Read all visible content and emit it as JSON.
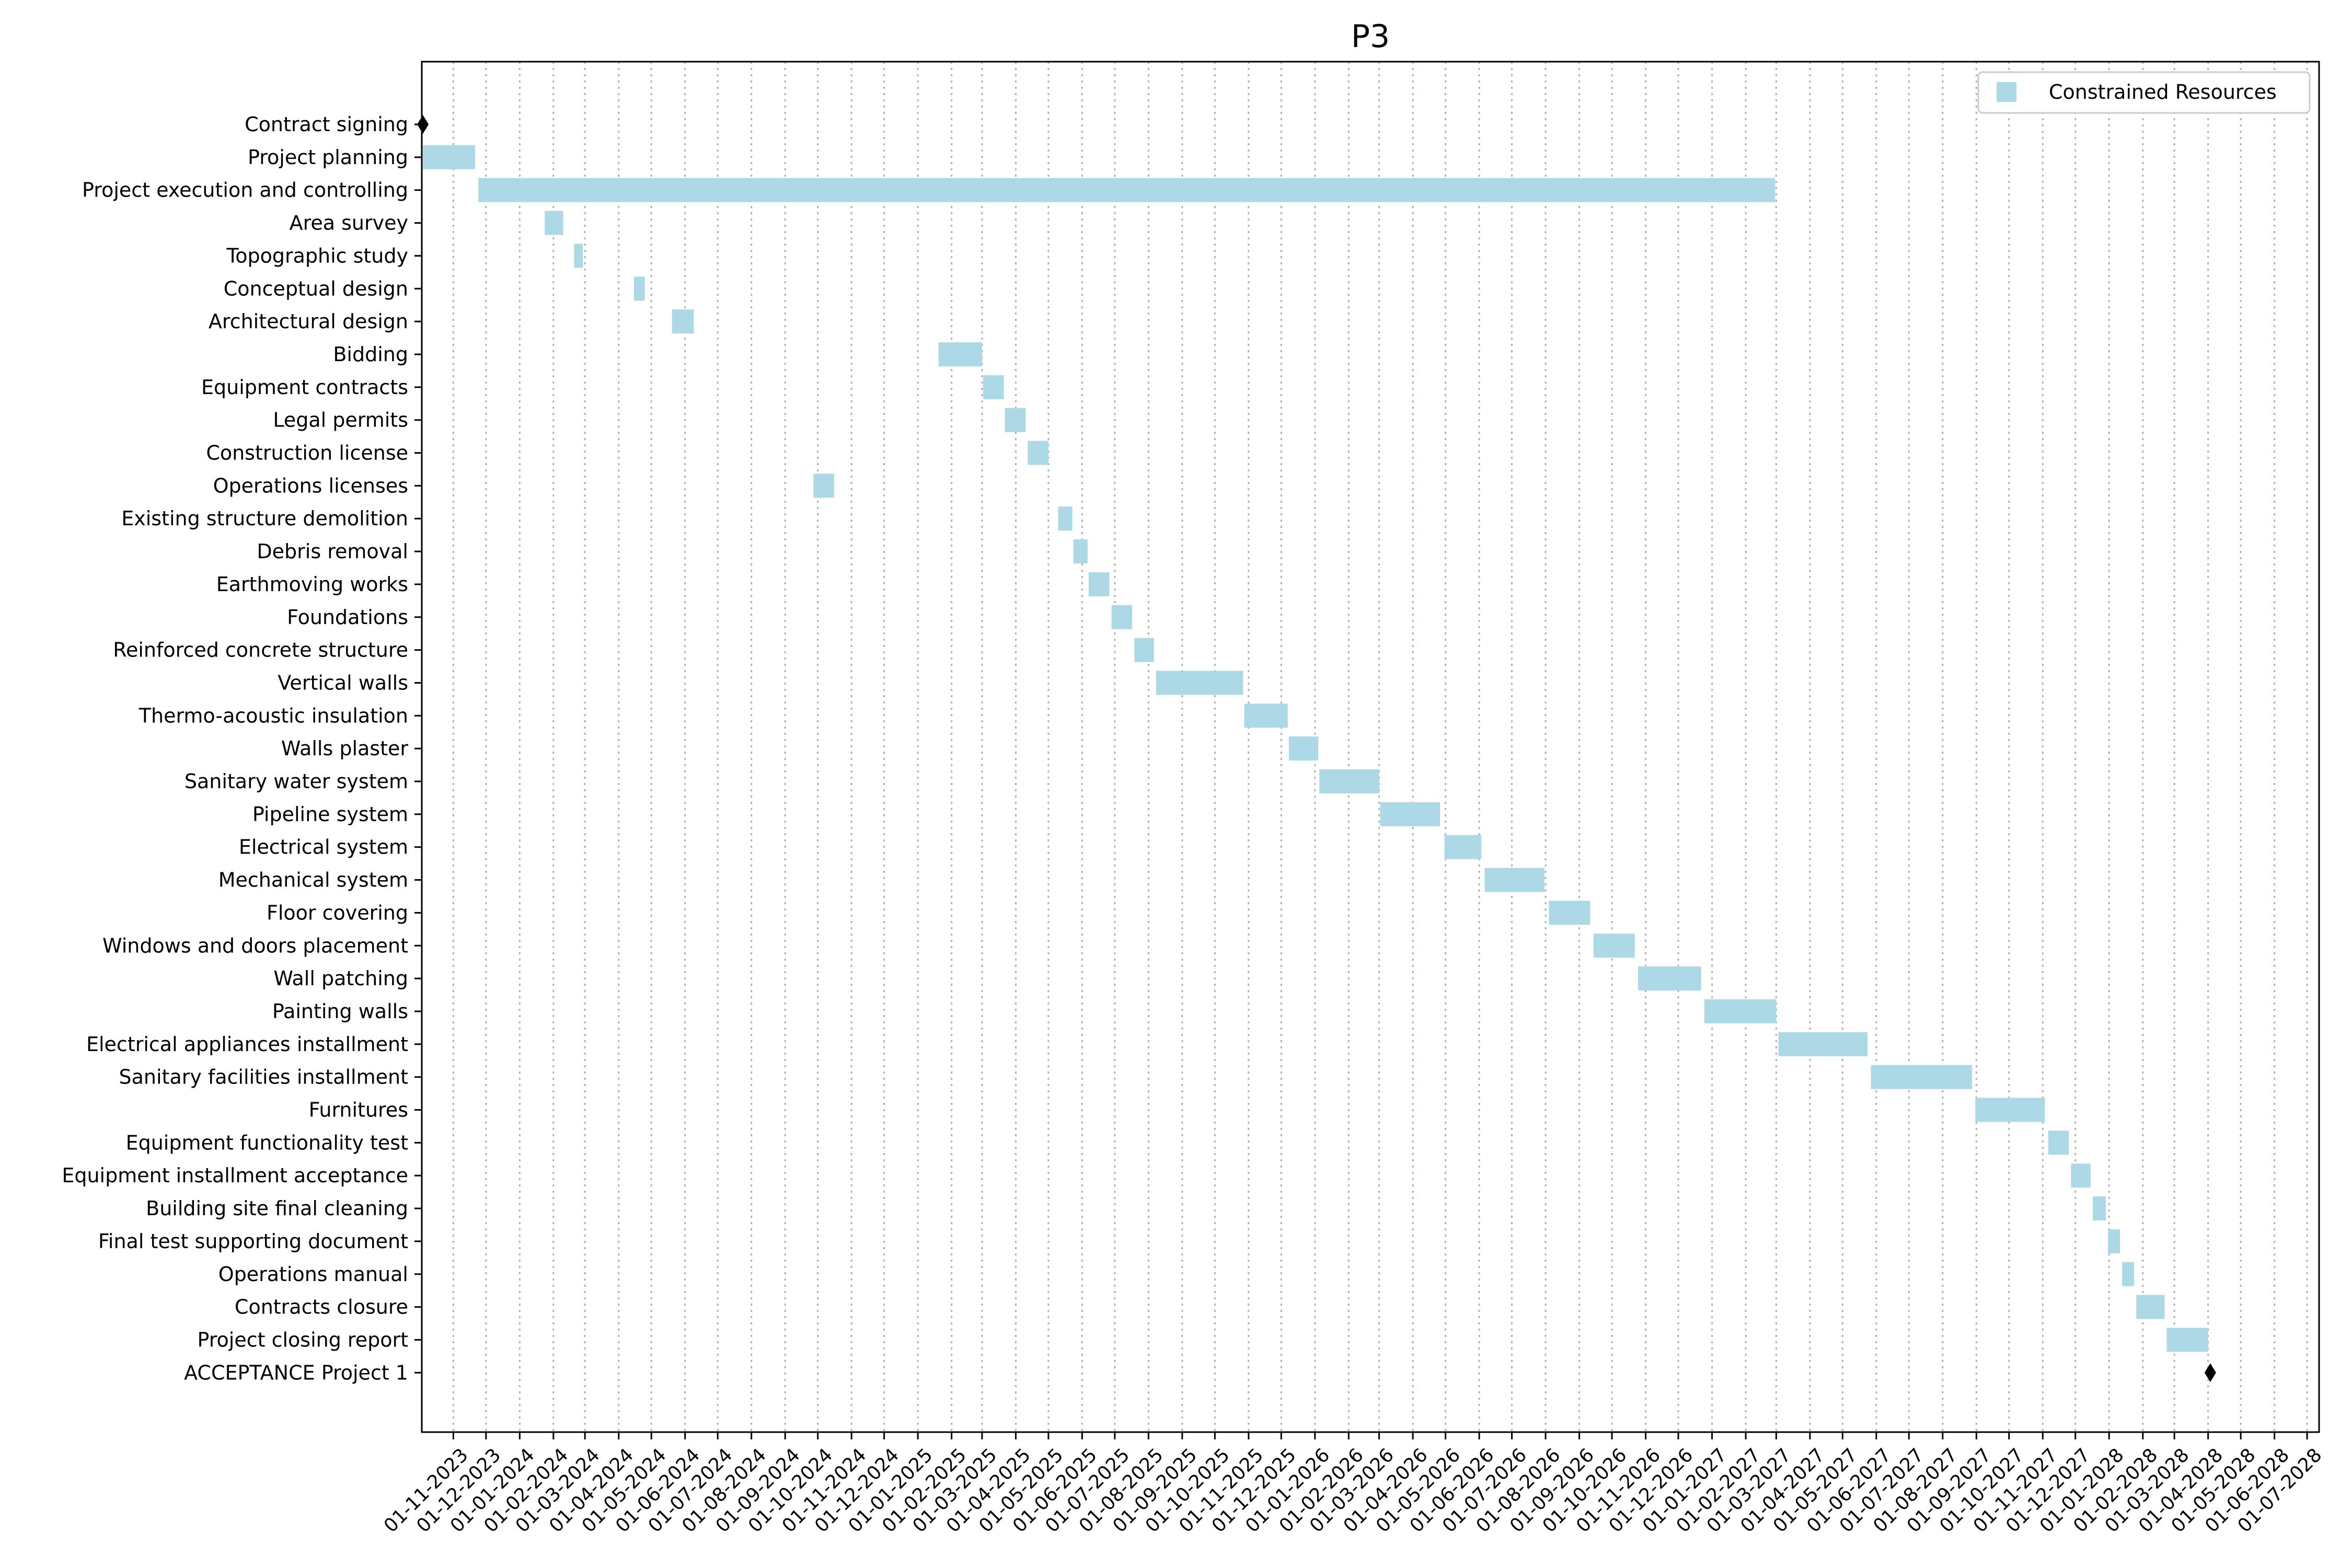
{
  "chart_data": {
    "type": "gantt",
    "title": "P3",
    "xlabel": "",
    "ylabel": "",
    "grid": "vertical dotted at each month tick",
    "legend": {
      "placement": "top-right",
      "entries": [
        {
          "label": "Constrained Resources",
          "color": "#add8e6"
        }
      ]
    },
    "bar_color": "#add8e6",
    "milestone_color": "#000000",
    "x_range": [
      "2023-10-03",
      "2028-07-12"
    ],
    "x_ticks": [
      "01-11-2023",
      "01-12-2023",
      "01-01-2024",
      "01-02-2024",
      "01-03-2024",
      "01-04-2024",
      "01-05-2024",
      "01-06-2024",
      "01-07-2024",
      "01-08-2024",
      "01-09-2024",
      "01-10-2024",
      "01-11-2024",
      "01-12-2024",
      "01-01-2025",
      "01-02-2025",
      "01-03-2025",
      "01-04-2025",
      "01-05-2025",
      "01-06-2025",
      "01-07-2025",
      "01-08-2025",
      "01-09-2025",
      "01-10-2025",
      "01-11-2025",
      "01-12-2025",
      "01-01-2026",
      "01-02-2026",
      "01-03-2026",
      "01-04-2026",
      "01-05-2026",
      "01-06-2026",
      "01-07-2026",
      "01-08-2026",
      "01-09-2026",
      "01-10-2026",
      "01-11-2026",
      "01-12-2026",
      "01-01-2027",
      "01-02-2027",
      "01-03-2027",
      "01-04-2027",
      "01-05-2027",
      "01-06-2027",
      "01-07-2027",
      "01-08-2027",
      "01-09-2027",
      "01-10-2027",
      "01-11-2027",
      "01-12-2027",
      "01-01-2028",
      "01-02-2028",
      "01-03-2028",
      "01-04-2028",
      "01-05-2028",
      "01-06-2028",
      "01-07-2028"
    ],
    "tasks": [
      {
        "name": "Contract signing",
        "start": "2023-10-04",
        "end": "2023-10-04",
        "milestone": true
      },
      {
        "name": "Project planning",
        "start": "2023-10-04",
        "end": "2023-11-21"
      },
      {
        "name": "Project execution and controlling",
        "start": "2023-11-24",
        "end": "2027-02-28"
      },
      {
        "name": "Area survey",
        "start": "2024-01-24",
        "end": "2024-02-10"
      },
      {
        "name": "Topographic study",
        "start": "2024-02-20",
        "end": "2024-02-28"
      },
      {
        "name": "Conceptual design",
        "start": "2024-04-15",
        "end": "2024-04-25"
      },
      {
        "name": "Architectural design",
        "start": "2024-05-20",
        "end": "2024-06-09"
      },
      {
        "name": "Bidding",
        "start": "2025-01-20",
        "end": "2025-03-01"
      },
      {
        "name": "Equipment contracts",
        "start": "2025-03-02",
        "end": "2025-03-21"
      },
      {
        "name": "Legal permits",
        "start": "2025-03-22",
        "end": "2025-04-10"
      },
      {
        "name": "Construction license",
        "start": "2025-04-12",
        "end": "2025-05-01"
      },
      {
        "name": "Operations licenses",
        "start": "2024-09-27",
        "end": "2024-10-16"
      },
      {
        "name": "Existing structure demolition",
        "start": "2025-05-10",
        "end": "2025-05-23"
      },
      {
        "name": "Debris removal",
        "start": "2025-05-24",
        "end": "2025-06-06"
      },
      {
        "name": "Earthmoving works",
        "start": "2025-06-07",
        "end": "2025-06-26"
      },
      {
        "name": "Foundations",
        "start": "2025-06-28",
        "end": "2025-07-17"
      },
      {
        "name": "Reinforced concrete structure",
        "start": "2025-07-19",
        "end": "2025-08-06"
      },
      {
        "name": "Vertical walls",
        "start": "2025-08-08",
        "end": "2025-10-27"
      },
      {
        "name": "Thermo-acoustic insulation",
        "start": "2025-10-28",
        "end": "2025-12-07"
      },
      {
        "name": "Walls plaster",
        "start": "2025-12-08",
        "end": "2026-01-04"
      },
      {
        "name": "Sanitary water system",
        "start": "2026-01-05",
        "end": "2026-03-01"
      },
      {
        "name": "Pipeline system",
        "start": "2026-03-02",
        "end": "2026-04-26"
      },
      {
        "name": "Electrical system",
        "start": "2026-04-30",
        "end": "2026-06-03"
      },
      {
        "name": "Mechanical system",
        "start": "2026-06-06",
        "end": "2026-07-31"
      },
      {
        "name": "Floor covering",
        "start": "2026-08-04",
        "end": "2026-09-11"
      },
      {
        "name": "Windows and doors placement",
        "start": "2026-09-14",
        "end": "2026-10-22"
      },
      {
        "name": "Wall patching",
        "start": "2026-10-25",
        "end": "2026-12-22"
      },
      {
        "name": "Painting walls",
        "start": "2026-12-25",
        "end": "2027-03-01"
      },
      {
        "name": "Electrical appliances installment",
        "start": "2027-03-03",
        "end": "2027-05-24"
      },
      {
        "name": "Sanitary facilities installment",
        "start": "2027-05-27",
        "end": "2027-08-28"
      },
      {
        "name": "Furnitures",
        "start": "2027-08-31",
        "end": "2027-11-03"
      },
      {
        "name": "Equipment functionality test",
        "start": "2027-11-06",
        "end": "2027-11-25"
      },
      {
        "name": "Equipment installment acceptance",
        "start": "2027-11-27",
        "end": "2027-12-15"
      },
      {
        "name": "Building site final cleaning",
        "start": "2027-12-17",
        "end": "2027-12-29"
      },
      {
        "name": "Final test supporting document",
        "start": "2027-12-31",
        "end": "2028-01-11"
      },
      {
        "name": "Operations manual",
        "start": "2028-01-13",
        "end": "2028-01-24"
      },
      {
        "name": "Contracts closure",
        "start": "2028-01-26",
        "end": "2028-02-21"
      },
      {
        "name": "Project closing report",
        "start": "2028-02-23",
        "end": "2028-04-01"
      },
      {
        "name": "ACCEPTANCE Project 1",
        "start": "2028-04-03",
        "end": "2028-04-03",
        "milestone": true
      }
    ]
  }
}
